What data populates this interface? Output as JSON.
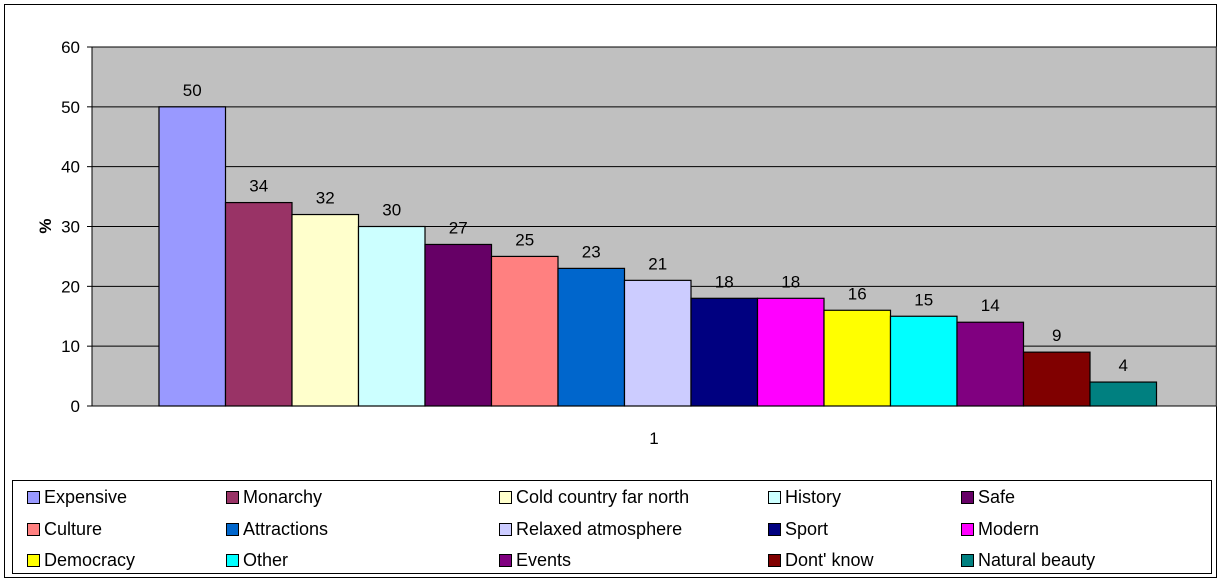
{
  "chart_data": {
    "type": "bar",
    "title": "",
    "xlabel": "",
    "ylabel": "%",
    "ylim": [
      0,
      60
    ],
    "yticks": [
      0,
      10,
      20,
      30,
      40,
      50,
      60
    ],
    "categories": [
      "1"
    ],
    "grid": true,
    "plot_background": "#C0C0C0",
    "legend_position": "bottom",
    "series": [
      {
        "name": "Expensive",
        "values": [
          50
        ],
        "color": "#9999FF"
      },
      {
        "name": "Monarchy",
        "values": [
          34
        ],
        "color": "#993366"
      },
      {
        "name": "Cold country far north",
        "values": [
          32
        ],
        "color": "#FFFFCC"
      },
      {
        "name": "History",
        "values": [
          30
        ],
        "color": "#CCFFFF"
      },
      {
        "name": "Safe",
        "values": [
          27
        ],
        "color": "#660066"
      },
      {
        "name": "Culture",
        "values": [
          25
        ],
        "color": "#FF8080"
      },
      {
        "name": "Attractions",
        "values": [
          23
        ],
        "color": "#0066CC"
      },
      {
        "name": "Relaxed atmosphere",
        "values": [
          21
        ],
        "color": "#CCCCFF"
      },
      {
        "name": "Sport",
        "values": [
          18
        ],
        "color": "#000080"
      },
      {
        "name": "Modern",
        "values": [
          18
        ],
        "color": "#FF00FF"
      },
      {
        "name": "Democracy",
        "values": [
          16
        ],
        "color": "#FFFF00"
      },
      {
        "name": "Other",
        "values": [
          15
        ],
        "color": "#00FFFF"
      },
      {
        "name": "Events",
        "values": [
          14
        ],
        "color": "#800080"
      },
      {
        "name": "Dont' know",
        "values": [
          9
        ],
        "color": "#800000"
      },
      {
        "name": "Natural beauty",
        "values": [
          4
        ],
        "color": "#008080"
      }
    ]
  }
}
